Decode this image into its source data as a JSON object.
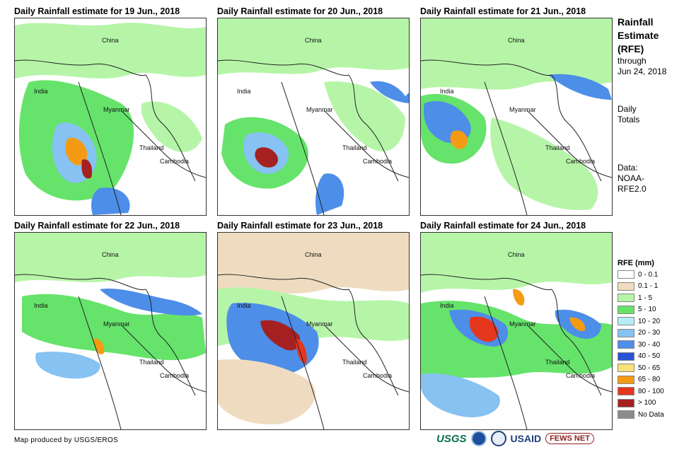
{
  "panels": [
    {
      "title": "Daily Rainfall estimate for 19 Jun., 2018"
    },
    {
      "title": "Daily Rainfall estimate for 20 Jun., 2018"
    },
    {
      "title": "Daily Rainfall estimate for 21 Jun., 2018"
    },
    {
      "title": "Daily Rainfall estimate for 22 Jun., 2018"
    },
    {
      "title": "Daily Rainfall estimate for 23 Jun., 2018"
    },
    {
      "title": "Daily Rainfall estimate for 24 Jun., 2018"
    }
  ],
  "country_labels": {
    "china": "China",
    "india": "India",
    "myanmar": "Myanmar",
    "thailand": "Thailand",
    "cambodia": "Cambodia"
  },
  "side": {
    "title_line1": "Rainfall",
    "title_line2": "Estimate",
    "title_line3": "(RFE)",
    "through_line1": "through",
    "through_line2": "Jun 24, 2018",
    "totals_line1": "Daily",
    "totals_line2": "Totals",
    "data_line1": "Data:",
    "data_line2": "NOAA-",
    "data_line3": "RFE2.0"
  },
  "legend": {
    "title": "RFE (mm)",
    "items": [
      {
        "label": "0 - 0.1",
        "color": "#ffffff"
      },
      {
        "label": "0.1 - 1",
        "color": "#efdcc0"
      },
      {
        "label": "1 - 5",
        "color": "#b6f5a8"
      },
      {
        "label": "5 - 10",
        "color": "#66e36b"
      },
      {
        "label": "10 - 20",
        "color": "#b7ecf7"
      },
      {
        "label": "20 - 30",
        "color": "#86c2f2"
      },
      {
        "label": "30 - 40",
        "color": "#4d8ee8"
      },
      {
        "label": "40 - 50",
        "color": "#2a52d6"
      },
      {
        "label": "50 - 65",
        "color": "#f8e27a"
      },
      {
        "label": "65 - 80",
        "color": "#f59a14"
      },
      {
        "label": "80 - 100",
        "color": "#e5361e"
      },
      {
        "label": "> 100",
        "color": "#a52121"
      },
      {
        "label": "No Data",
        "color": "#8c8c8c"
      }
    ]
  },
  "footer": {
    "credit": "Map produced by USGS/EROS"
  },
  "logos": {
    "usgs": "USGS",
    "usaid": "USAID",
    "fews": "FEWS NET"
  }
}
